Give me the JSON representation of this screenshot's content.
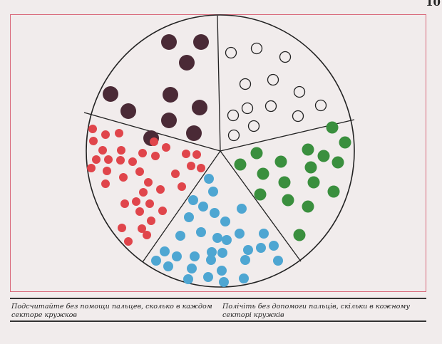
{
  "page": {
    "number": "10"
  },
  "illustration": {
    "sectors": [
      {
        "name": "top-left",
        "color": "#4a2a36",
        "filled": true,
        "count": 10
      },
      {
        "name": "top-right",
        "color": "#222222",
        "filled": false,
        "count": 13
      },
      {
        "name": "right",
        "color": "#3a8f3e",
        "filled": true,
        "count": 17
      },
      {
        "name": "bottom",
        "color": "#4ea6d2",
        "filled": true,
        "count": 33
      },
      {
        "name": "left",
        "color": "#e0454b",
        "filled": true,
        "count": 38
      }
    ]
  },
  "captions": {
    "russian": "Подсчитайте без помощи пальцев, сколько в каждом секторе кружков",
    "ukrainian": "Полічіть без допомоги пальців, скільки в кожному секторі кружків"
  }
}
